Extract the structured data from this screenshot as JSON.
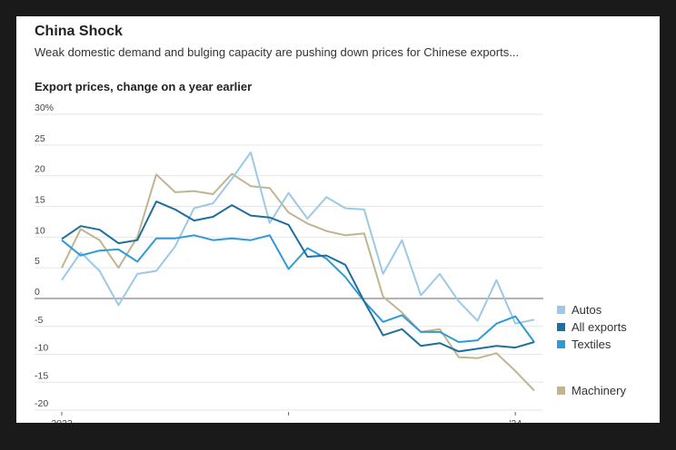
{
  "header": {
    "title": "China Shock",
    "subtitle": "Weak domestic demand and bulging capacity are pushing down prices for Chinese exports..."
  },
  "chart_data": {
    "type": "line",
    "title": "Export prices, change on a year earlier",
    "y_ticks": [
      "30%",
      "25",
      "20",
      "15",
      "10",
      "5",
      "0",
      "-5",
      "-10",
      "-15",
      "-20"
    ],
    "x_ticks": [
      "2022",
      "'24"
    ],
    "ylim": [
      -20,
      30
    ],
    "x": [
      "2022-01",
      "2022-02",
      "2022-03",
      "2022-04",
      "2022-05",
      "2022-06",
      "2022-07",
      "2022-08",
      "2022-09",
      "2022-10",
      "2022-11",
      "2022-12",
      "2023-01",
      "2023-02",
      "2023-03",
      "2023-04",
      "2023-05",
      "2023-06",
      "2023-07",
      "2023-08",
      "2023-09",
      "2023-10",
      "2023-11",
      "2023-12",
      "2024-01",
      "2024-02"
    ],
    "grid": true,
    "legend_placement": "right",
    "series": [
      {
        "name": "Autos",
        "color": "#9cc9e6",
        "values": [
          3,
          7.5,
          4.5,
          -1.2,
          4,
          4.5,
          8.5,
          14.7,
          15.5,
          19.5,
          23.8,
          12.3,
          17.2,
          13,
          16.5,
          14.7,
          14.5,
          4,
          9.5,
          0.5,
          4,
          -0.5,
          -4,
          3,
          -4.5,
          -3.8
        ]
      },
      {
        "name": "All exports",
        "color": "#1f6f9a",
        "values": [
          9.7,
          11.8,
          11.2,
          9,
          9.5,
          15.8,
          14.5,
          12.7,
          13.3,
          15.2,
          13.5,
          13.2,
          12,
          6.8,
          7,
          5.5,
          -0.5,
          -6.6,
          -5.5,
          -8.5,
          -8,
          -9.5,
          -9,
          -8.5,
          -8.8,
          -7.8
        ]
      },
      {
        "name": "Textiles",
        "color": "#2e9ad6",
        "values": [
          9.5,
          7,
          7.8,
          8,
          6,
          9.8,
          9.8,
          10.3,
          9.5,
          9.8,
          9.5,
          10.3,
          4.8,
          8.2,
          6.5,
          3.5,
          -0.5,
          -4.2,
          -3,
          -6,
          -6,
          -7.8,
          -7.5,
          -4.5,
          -3.2,
          -7.8
        ]
      },
      {
        "name": "Machinery",
        "color": "#bfb58f",
        "values": [
          5,
          11.3,
          9.5,
          5,
          10,
          20.2,
          17.3,
          17.5,
          17,
          20.3,
          18.3,
          18,
          14,
          12.2,
          11,
          10.3,
          10.6,
          0.3,
          -2.5,
          -6,
          -5.5,
          -10.5,
          -10.7,
          -9.8,
          -13,
          -16.5
        ]
      }
    ]
  }
}
